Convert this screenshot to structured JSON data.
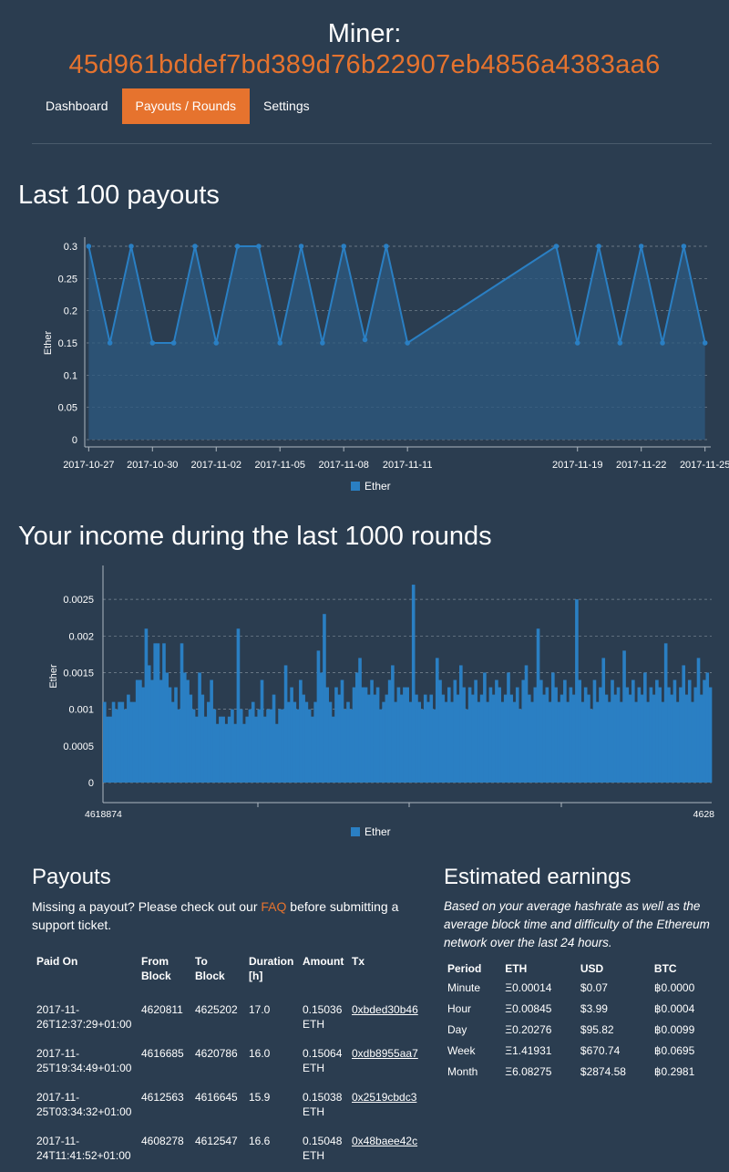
{
  "header": {
    "label": "Miner:",
    "address": "45d961bddef7bd389d76b22907eb4856a4383aa6"
  },
  "nav": {
    "tabs": [
      {
        "label": "Dashboard",
        "active": false
      },
      {
        "label": "Payouts / Rounds",
        "active": true
      },
      {
        "label": "Settings",
        "active": false
      }
    ]
  },
  "colors": {
    "accent": "#e6732e",
    "background": "#2b3d50",
    "series": "#2a7fc3"
  },
  "sections": {
    "payouts_chart_title": "Last 100 payouts",
    "income_chart_title": "Your income during the last 1000 rounds"
  },
  "chart_data": [
    {
      "type": "area",
      "title": "Last 100 payouts",
      "ylabel": "Ether",
      "ylim": [
        0,
        0.3
      ],
      "yticks": [
        "0",
        "0.05",
        "0.1",
        "0.15",
        "0.2",
        "0.25",
        "0.3"
      ],
      "xlim": [
        -0.1,
        29.1
      ],
      "xticks": [
        {
          "label": "2017-10-27",
          "x": 0
        },
        {
          "label": "2017-10-30",
          "x": 3
        },
        {
          "label": "2017-11-02",
          "x": 6
        },
        {
          "label": "2017-11-05",
          "x": 9
        },
        {
          "label": "2017-11-08",
          "x": 12
        },
        {
          "label": "2017-11-11",
          "x": 15
        },
        {
          "label": "2017-11-19",
          "x": 23
        },
        {
          "label": "2017-11-22",
          "x": 26
        },
        {
          "label": "2017-11-25",
          "x": 29
        }
      ],
      "legend": "Ether",
      "series": [
        {
          "name": "Ether",
          "x": [
            0,
            1,
            2,
            3,
            4,
            5,
            6,
            7,
            8,
            9,
            10,
            11,
            12,
            13,
            14,
            15,
            22,
            23,
            24,
            25,
            26,
            27,
            28,
            29
          ],
          "values": [
            0.3,
            0.15,
            0.3,
            0.15,
            0.15,
            0.3,
            0.15,
            0.3,
            0.3,
            0.15,
            0.3,
            0.15,
            0.3,
            0.155,
            0.3,
            0.15,
            0.3,
            0.15,
            0.3,
            0.15,
            0.3,
            0.15,
            0.3,
            0.15
          ]
        }
      ]
    },
    {
      "type": "bar",
      "title": "Your income during the last 1000 rounds",
      "ylabel": "Ether",
      "ylim": [
        0,
        0.0029
      ],
      "yticks": [
        "0",
        "0.0005",
        "0.001",
        "0.0015",
        "0.002",
        "0.0025"
      ],
      "xticks": [
        "4618874",
        "4628"
      ],
      "legend": "Ether",
      "series": [
        {
          "name": "Ether",
          "values": [
            0.0011,
            0.0009,
            0.0009,
            0.0011,
            0.001,
            0.0011,
            0.0011,
            0.001,
            0.0012,
            0.0011,
            0.0011,
            0.0014,
            0.0014,
            0.0013,
            0.0021,
            0.0016,
            0.0014,
            0.0019,
            0.0019,
            0.0014,
            0.0019,
            0.0015,
            0.0013,
            0.0011,
            0.0013,
            0.001,
            0.0019,
            0.0015,
            0.0014,
            0.0012,
            0.001,
            0.0009,
            0.0015,
            0.0012,
            0.0009,
            0.0011,
            0.0014,
            0.001,
            0.0008,
            0.0009,
            0.0009,
            0.0008,
            0.0009,
            0.001,
            0.0008,
            0.0021,
            0.001,
            0.0008,
            0.0009,
            0.001,
            0.0011,
            0.0009,
            0.001,
            0.0014,
            0.0009,
            0.001,
            0.001,
            0.0012,
            0.0008,
            0.001,
            0.001,
            0.0016,
            0.0011,
            0.0013,
            0.0011,
            0.001,
            0.0014,
            0.0012,
            0.0011,
            0.001,
            0.0009,
            0.0011,
            0.0018,
            0.0015,
            0.0023,
            0.0013,
            0.0011,
            0.0009,
            0.0013,
            0.0012,
            0.0014,
            0.001,
            0.0011,
            0.001,
            0.0013,
            0.0015,
            0.0017,
            0.0013,
            0.0013,
            0.0012,
            0.0014,
            0.0012,
            0.0013,
            0.001,
            0.0011,
            0.0012,
            0.0014,
            0.0016,
            0.0011,
            0.0013,
            0.0012,
            0.0013,
            0.0013,
            0.0011,
            0.0027,
            0.0012,
            0.0011,
            0.001,
            0.0012,
            0.0011,
            0.0012,
            0.001,
            0.0017,
            0.0014,
            0.0012,
            0.0011,
            0.0013,
            0.0011,
            0.0014,
            0.0012,
            0.0016,
            0.0013,
            0.001,
            0.0013,
            0.0012,
            0.0014,
            0.0011,
            0.0012,
            0.0015,
            0.0011,
            0.0013,
            0.0012,
            0.0014,
            0.0013,
            0.0011,
            0.0012,
            0.0015,
            0.0012,
            0.0011,
            0.0013,
            0.001,
            0.0014,
            0.0016,
            0.0012,
            0.0011,
            0.0013,
            0.0021,
            0.0014,
            0.0012,
            0.0013,
            0.0011,
            0.0015,
            0.0013,
            0.0011,
            0.0012,
            0.0014,
            0.0011,
            0.0013,
            0.0012,
            0.0025,
            0.0014,
            0.0011,
            0.0013,
            0.0012,
            0.001,
            0.0014,
            0.0011,
            0.0013,
            0.0017,
            0.0012,
            0.0011,
            0.0014,
            0.0012,
            0.0013,
            0.0011,
            0.0018,
            0.0013,
            0.0012,
            0.0014,
            0.0011,
            0.0013,
            0.0012,
            0.0015,
            0.0011,
            0.0013,
            0.0012,
            0.0014,
            0.0013,
            0.0011,
            0.0019,
            0.0013,
            0.0012,
            0.0014,
            0.0011,
            0.0013,
            0.0016,
            0.0012,
            0.0014,
            0.0011,
            0.0013,
            0.0017,
            0.0012,
            0.0014,
            0.0015,
            0.0013
          ]
        }
      ]
    }
  ],
  "payouts": {
    "title": "Payouts",
    "note_before": "Missing a payout? Please check out our ",
    "faq_label": "FAQ",
    "note_after": " before submitting a support ticket.",
    "columns": [
      "Paid On",
      "From Block",
      "To Block",
      "Duration [h]",
      "Amount",
      "Tx"
    ],
    "rows": [
      {
        "paid_on": "2017-11-26T12:37:29+01:00",
        "from": "4620811",
        "to": "4625202",
        "duration": "17.0",
        "amount": "0.15036 ETH",
        "tx": "0xbded30b46"
      },
      {
        "paid_on": "2017-11-25T19:34:49+01:00",
        "from": "4616685",
        "to": "4620786",
        "duration": "16.0",
        "amount": "0.15064 ETH",
        "tx": "0xdb8955aa7"
      },
      {
        "paid_on": "2017-11-25T03:34:32+01:00",
        "from": "4612563",
        "to": "4616645",
        "duration": "15.9",
        "amount": "0.15038 ETH",
        "tx": "0x2519cbdc3"
      },
      {
        "paid_on": "2017-11-24T11:41:52+01:00",
        "from": "4608278",
        "to": "4612547",
        "duration": "16.6",
        "amount": "0.15048 ETH",
        "tx": "0x48baee42c"
      }
    ]
  },
  "estimates": {
    "title": "Estimated earnings",
    "note": "Based on your average hashrate as well as the average block time and difficulty of the Ethereum network over the last 24 hours.",
    "columns": [
      "Period",
      "ETH",
      "USD",
      "BTC"
    ],
    "rows": [
      {
        "period": "Minute",
        "eth": "Ξ0.00014",
        "usd": "$0.07",
        "btc": "฿0.0000"
      },
      {
        "period": "Hour",
        "eth": "Ξ0.00845",
        "usd": "$3.99",
        "btc": "฿0.0004"
      },
      {
        "period": "Day",
        "eth": "Ξ0.20276",
        "usd": "$95.82",
        "btc": "฿0.0099"
      },
      {
        "period": "Week",
        "eth": "Ξ1.41931",
        "usd": "$670.74",
        "btc": "฿0.0695"
      },
      {
        "period": "Month",
        "eth": "Ξ6.08275",
        "usd": "$2874.58",
        "btc": "฿0.2981"
      }
    ]
  }
}
